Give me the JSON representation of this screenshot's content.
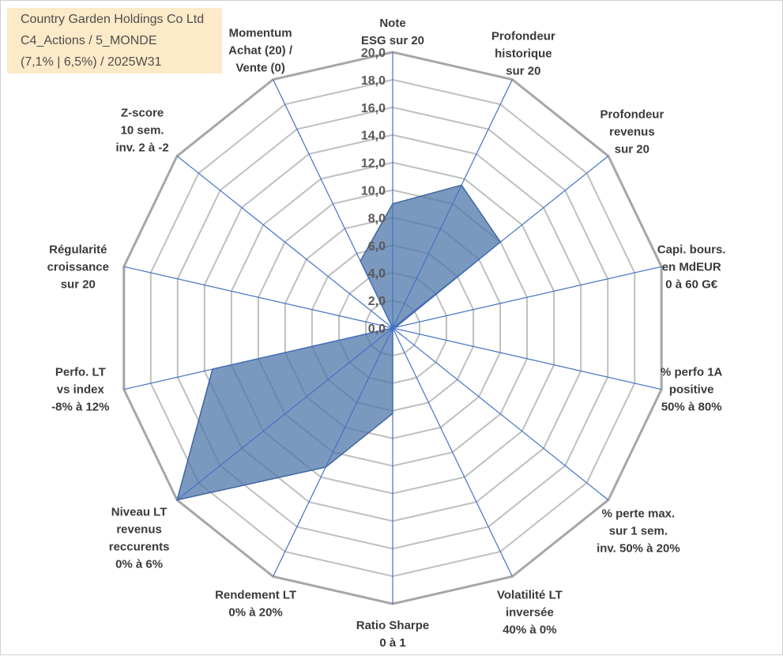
{
  "title": {
    "lines": [
      "Country Garden Holdings Co Ltd",
      "C4_Actions / 5_MONDE",
      "(7,1% | 6,5%) / 2025W31"
    ]
  },
  "chart_data": {
    "type": "radar",
    "axis": {
      "min": 0,
      "max": 20,
      "step": 2,
      "tick_labels": [
        "0,0",
        "2,0",
        "4,0",
        "6,0",
        "8,0",
        "10,0",
        "12,0",
        "14,0",
        "16,0",
        "18,0",
        "20,0"
      ]
    },
    "grid": true,
    "categories": [
      [
        "Note",
        "ESG sur 20"
      ],
      [
        "Profondeur",
        "historique",
        "sur 20"
      ],
      [
        "Profondeur",
        "revenus",
        "sur 20"
      ],
      [
        "Capi. bours.",
        "en MdEUR",
        "0 à 60 G€"
      ],
      [
        "% perfo 1A",
        "positive",
        "50% à 80%"
      ],
      [
        "% perte max.",
        "sur 1 sem.",
        "inv. 50% à 20%"
      ],
      [
        "Volatilité LT",
        "inversée",
        "40% à 0%"
      ],
      [
        "Ratio Sharpe",
        "0 à 1"
      ],
      [
        "Rendement LT",
        "0% à 20%"
      ],
      [
        "Niveau LT",
        "revenus",
        "reccurents",
        "0% à 6%"
      ],
      [
        "Perfo. LT",
        "vs index",
        "-8% à 12%"
      ],
      [
        "Régularité",
        "croissance",
        "sur 20"
      ],
      [
        "Z-score",
        "10 sem.",
        "inv. 2 à -2"
      ],
      [
        "Momentum",
        "Achat (20) /",
        "Vente (0)"
      ]
    ],
    "series": [
      {
        "values": [
          9.0,
          11.5,
          10.0,
          0.2,
          0.0,
          0.0,
          0.0,
          6.2,
          11.2,
          20.0,
          13.4,
          0.0,
          0.0,
          5.4
        ]
      }
    ],
    "colors": {
      "fill": "#4f77aa",
      "fill_opacity": 0.75,
      "stroke": "#3f66a0",
      "spoke": "#4472c4",
      "grid": "#bfbfbf",
      "outer": "#a6a6a6"
    }
  }
}
